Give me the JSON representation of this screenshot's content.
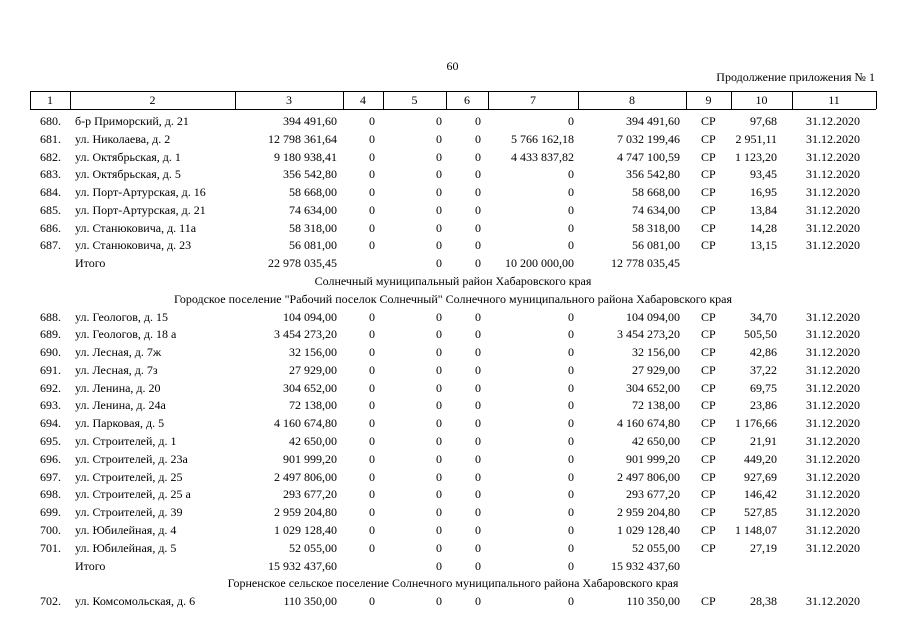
{
  "page_number": "60",
  "caption": "Продолжение приложения № 1",
  "table": {
    "header": [
      "1",
      "2",
      "3",
      "4",
      "5",
      "6",
      "7",
      "8",
      "9",
      "10",
      "11"
    ],
    "rows": [
      {
        "1": "680.",
        "2": "б-р Приморский, д. 21",
        "3": "394 491,60",
        "4": "0",
        "5": "0",
        "6": "0",
        "7": "0",
        "8": "394 491,60",
        "9": "СР",
        "10": "97,68",
        "11": "31.12.2020"
      },
      {
        "1": "681.",
        "2": "ул. Николаева, д. 2",
        "3": "12 798 361,64",
        "4": "0",
        "5": "0",
        "6": "0",
        "7": "5 766 162,18",
        "8": "7 032 199,46",
        "9": "СР",
        "10": "2 951,11",
        "11": "31.12.2020"
      },
      {
        "1": "682.",
        "2": "ул. Октябрьская, д. 1",
        "3": "9 180 938,41",
        "4": "0",
        "5": "0",
        "6": "0",
        "7": "4 433 837,82",
        "8": "4 747 100,59",
        "9": "СР",
        "10": "1 123,20",
        "11": "31.12.2020"
      },
      {
        "1": "683.",
        "2": "ул. Октябрьская, д. 5",
        "3": "356 542,80",
        "4": "0",
        "5": "0",
        "6": "0",
        "7": "0",
        "8": "356 542,80",
        "9": "СР",
        "10": "93,45",
        "11": "31.12.2020"
      },
      {
        "1": "684.",
        "2": "ул. Порт-Артурская, д. 16",
        "3": "58 668,00",
        "4": "0",
        "5": "0",
        "6": "0",
        "7": "0",
        "8": "58 668,00",
        "9": "СР",
        "10": "16,95",
        "11": "31.12.2020"
      },
      {
        "1": "685.",
        "2": "ул. Порт-Артурская, д. 21",
        "3": "74 634,00",
        "4": "0",
        "5": "0",
        "6": "0",
        "7": "0",
        "8": "74 634,00",
        "9": "СР",
        "10": "13,84",
        "11": "31.12.2020"
      },
      {
        "1": "686.",
        "2": "ул. Станюковича, д. 11а",
        "3": "58 318,00",
        "4": "0",
        "5": "0",
        "6": "0",
        "7": "0",
        "8": "58 318,00",
        "9": "СР",
        "10": "14,28",
        "11": "31.12.2020"
      },
      {
        "1": "687.",
        "2": "ул. Станюковича, д. 23",
        "3": "56 081,00",
        "4": "0",
        "5": "0",
        "6": "0",
        "7": "0",
        "8": "56 081,00",
        "9": "СР",
        "10": "13,15",
        "11": "31.12.2020"
      },
      {
        "2": "Итого",
        "3": "22 978 035,45",
        "5": "0",
        "6": "0",
        "7": "10 200 000,00",
        "8": "12 778 035,45"
      },
      {
        "heading": "Солнечный муниципальный район Хабаровского края"
      },
      {
        "heading": "Городское поселение \"Рабочий поселок Солнечный\" Солнечного муниципального района Хабаровского края"
      },
      {
        "1": "688.",
        "2": "ул. Геологов, д. 15",
        "3": "104 094,00",
        "4": "0",
        "5": "0",
        "6": "0",
        "7": "0",
        "8": "104 094,00",
        "9": "СР",
        "10": "34,70",
        "11": "31.12.2020"
      },
      {
        "1": "689.",
        "2": "ул. Геологов, д. 18 а",
        "3": "3 454 273,20",
        "4": "0",
        "5": "0",
        "6": "0",
        "7": "0",
        "8": "3 454 273,20",
        "9": "СР",
        "10": "505,50",
        "11": "31.12.2020"
      },
      {
        "1": "690.",
        "2": "ул. Лесная, д. 7ж",
        "3": "32 156,00",
        "4": "0",
        "5": "0",
        "6": "0",
        "7": "0",
        "8": "32 156,00",
        "9": "СР",
        "10": "42,86",
        "11": "31.12.2020"
      },
      {
        "1": "691.",
        "2": "ул. Лесная, д. 7з",
        "3": "27 929,00",
        "4": "0",
        "5": "0",
        "6": "0",
        "7": "0",
        "8": "27 929,00",
        "9": "СР",
        "10": "37,22",
        "11": "31.12.2020"
      },
      {
        "1": "692.",
        "2": "ул. Ленина, д. 20",
        "3": "304 652,00",
        "4": "0",
        "5": "0",
        "6": "0",
        "7": "0",
        "8": "304 652,00",
        "9": "СР",
        "10": "69,75",
        "11": "31.12.2020"
      },
      {
        "1": "693.",
        "2": "ул. Ленина, д. 24а",
        "3": "72 138,00",
        "4": "0",
        "5": "0",
        "6": "0",
        "7": "0",
        "8": "72 138,00",
        "9": "СР",
        "10": "23,86",
        "11": "31.12.2020"
      },
      {
        "1": "694.",
        "2": "ул. Парковая, д. 5",
        "3": "4 160 674,80",
        "4": "0",
        "5": "0",
        "6": "0",
        "7": "0",
        "8": "4 160 674,80",
        "9": "СР",
        "10": "1 176,66",
        "11": "31.12.2020"
      },
      {
        "1": "695.",
        "2": "ул. Строителей, д. 1",
        "3": "42 650,00",
        "4": "0",
        "5": "0",
        "6": "0",
        "7": "0",
        "8": "42 650,00",
        "9": "СР",
        "10": "21,91",
        "11": "31.12.2020"
      },
      {
        "1": "696.",
        "2": "ул. Строителей, д. 23а",
        "3": "901 999,20",
        "4": "0",
        "5": "0",
        "6": "0",
        "7": "0",
        "8": "901 999,20",
        "9": "СР",
        "10": "449,20",
        "11": "31.12.2020"
      },
      {
        "1": "697.",
        "2": "ул. Строителей, д. 25",
        "3": "2 497 806,00",
        "4": "0",
        "5": "0",
        "6": "0",
        "7": "0",
        "8": "2 497 806,00",
        "9": "СР",
        "10": "927,69",
        "11": "31.12.2020"
      },
      {
        "1": "698.",
        "2": "ул. Строителей, д. 25 а",
        "3": "293 677,20",
        "4": "0",
        "5": "0",
        "6": "0",
        "7": "0",
        "8": "293 677,20",
        "9": "СР",
        "10": "146,42",
        "11": "31.12.2020"
      },
      {
        "1": "699.",
        "2": "ул. Строителей, д. 39",
        "3": "2 959 204,80",
        "4": "0",
        "5": "0",
        "6": "0",
        "7": "0",
        "8": "2 959 204,80",
        "9": "СР",
        "10": "527,85",
        "11": "31.12.2020"
      },
      {
        "1": "700.",
        "2": "ул. Юбилейная, д. 4",
        "3": "1 029 128,40",
        "4": "0",
        "5": "0",
        "6": "0",
        "7": "0",
        "8": "1 029 128,40",
        "9": "СР",
        "10": "1 148,07",
        "11": "31.12.2020"
      },
      {
        "1": "701.",
        "2": "ул. Юбилейная, д. 5",
        "3": "52 055,00",
        "4": "0",
        "5": "0",
        "6": "0",
        "7": "0",
        "8": "52 055,00",
        "9": "СР",
        "10": "27,19",
        "11": "31.12.2020"
      },
      {
        "2": "Итого",
        "3": "15 932 437,60",
        "5": "0",
        "6": "0",
        "7": "0",
        "8": "15 932 437,60"
      },
      {
        "heading": "Горненское сельское поселение Солнечного муниципального района Хабаровского края"
      },
      {
        "1": "702.",
        "2": "ул. Комсомольская, д. 6",
        "3": "110 350,00",
        "4": "0",
        "5": "0",
        "6": "0",
        "7": "0",
        "8": "110 350,00",
        "9": "СР",
        "10": "28,38",
        "11": "31.12.2020"
      }
    ]
  }
}
